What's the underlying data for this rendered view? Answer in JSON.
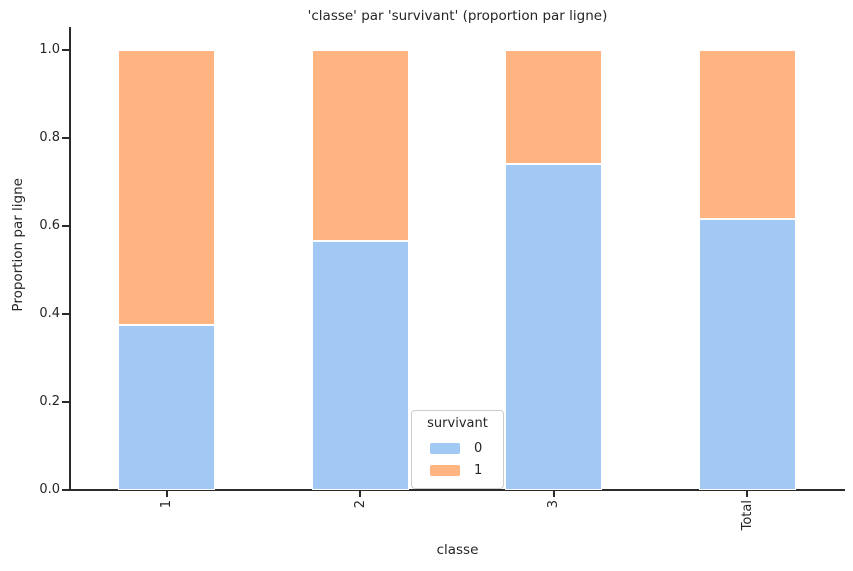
{
  "chart_data": {
    "type": "bar",
    "stacked": true,
    "orientation": "vertical",
    "title": "'classe' par 'survivant' (proportion par ligne)",
    "xlabel": "classe",
    "ylabel": "Proportion par ligne",
    "categories": [
      "1",
      "2",
      "3",
      "Total"
    ],
    "series": [
      {
        "name": "0",
        "color": "#a1c9f4",
        "values": [
          0.375,
          0.565,
          0.74,
          0.615
        ]
      },
      {
        "name": "1",
        "color": "#ffb482",
        "values": [
          0.625,
          0.435,
          0.26,
          0.385
        ]
      }
    ],
    "yticks": [
      0.0,
      0.2,
      0.4,
      0.6,
      0.8,
      1.0
    ],
    "ytick_labels": [
      "0.0",
      "0.2",
      "0.4",
      "0.6",
      "0.8",
      "1.0"
    ],
    "ylim": [
      0,
      1.05
    ],
    "grid": false,
    "legend": {
      "title": "survivant",
      "entries": [
        "0",
        "1"
      ],
      "position": "lower center"
    },
    "colors": {
      "background": "#ffffff",
      "text": "#262626",
      "axis": "#2b2b2b",
      "legend_border": "#cccccc",
      "bar_edge": "#ffffff"
    },
    "xtick_label_rotation_deg": 90
  }
}
